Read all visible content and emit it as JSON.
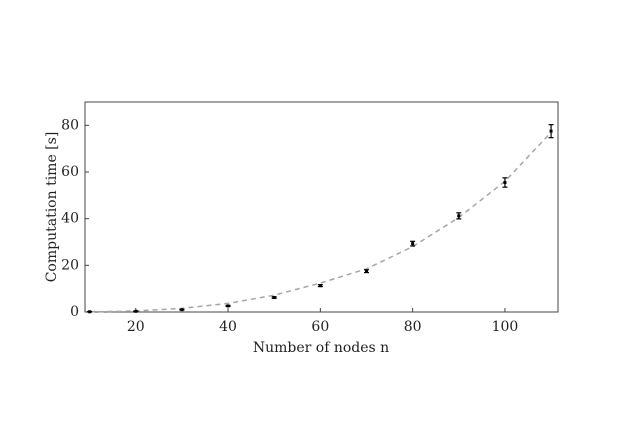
{
  "chart_data": {
    "type": "errorbar",
    "xlabel": "Number of nodes n",
    "ylabel": "Computation time [s]",
    "x": [
      10,
      20,
      30,
      40,
      50,
      60,
      70,
      80,
      90,
      100,
      110
    ],
    "series": [
      {
        "color": "#000000",
        "values": [
          0.1,
          0.3,
          1.0,
          2.6,
          6.2,
          11.3,
          17.5,
          29.3,
          41.2,
          55.5,
          77.5
        ],
        "errors": [
          0.1,
          0.1,
          0.15,
          0.2,
          0.3,
          0.4,
          0.6,
          1.0,
          1.3,
          2.0,
          2.8
        ]
      }
    ],
    "fit": {
      "color": "#a6a6a6",
      "dashed": true,
      "x": [
        10,
        20,
        30,
        40,
        50,
        60,
        70,
        80,
        90,
        100,
        110
      ],
      "values": [
        0.06,
        0.46,
        1.55,
        3.7,
        7.2,
        12.4,
        18.5,
        28.0,
        40.5,
        56.0,
        77.0
      ]
    },
    "xlim": [
      9,
      111.5
    ],
    "ylim": [
      0,
      90
    ],
    "xticks": [
      20,
      40,
      60,
      80,
      100
    ],
    "yticks": [
      0,
      20,
      40,
      60,
      80
    ]
  }
}
